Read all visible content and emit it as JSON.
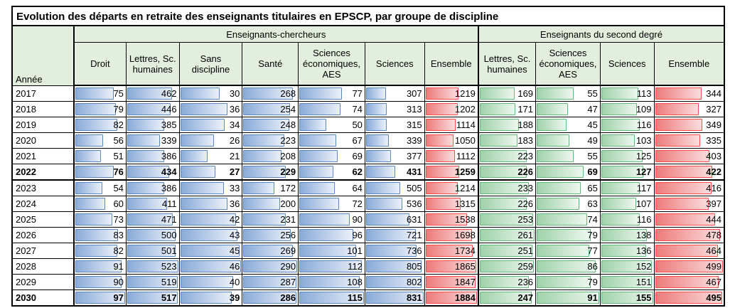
{
  "title": "Evolution des départs en retraite des enseignants titulaires en EPSCP, par groupe de discipline",
  "groups": {
    "ec": "Enseignants-chercheurs",
    "sd": "Enseignants du second degré"
  },
  "year_header": "Année",
  "columns": [
    {
      "id": "droit_ec",
      "label": "Droit",
      "group": "ec",
      "bar": "blue",
      "max": 97
    },
    {
      "id": "lettres_ec",
      "label": "Lettres, Sc. humaines",
      "group": "ec",
      "bar": "blue",
      "max": 523
    },
    {
      "id": "sans_discipline_ec",
      "label": "Sans discipline",
      "group": "ec",
      "bar": "blue",
      "max": 46
    },
    {
      "id": "sante_ec",
      "label": "Santé",
      "group": "ec",
      "bar": "blue",
      "max": 290
    },
    {
      "id": "sci_eco_aes_ec",
      "label": "Sciences économiques, AES",
      "group": "ec",
      "bar": "blue",
      "max": 115
    },
    {
      "id": "sciences_ec",
      "label": "Sciences",
      "group": "ec",
      "bar": "blue",
      "max": 831
    },
    {
      "id": "ensemble_ec",
      "label": "Ensemble",
      "group": "ec",
      "bar": "red",
      "max": 1884
    },
    {
      "id": "lettres_sd",
      "label": "Lettres, Sc. humaines",
      "group": "sd",
      "bar": "green",
      "max": 261
    },
    {
      "id": "sci_eco_aes_sd",
      "label": "Sciences économiques, AES",
      "group": "sd",
      "bar": "green",
      "max": 91
    },
    {
      "id": "sciences_sd",
      "label": "Sciences",
      "group": "sd",
      "bar": "green",
      "max": 155
    },
    {
      "id": "ensemble_sd",
      "label": "Ensemble",
      "group": "sd",
      "bar": "red",
      "max": 499
    }
  ],
  "rows": [
    {
      "year": "2017",
      "bold": false,
      "sep": false,
      "values": [
        75,
        462,
        30,
        268,
        77,
        307,
        1219,
        169,
        55,
        113,
        344
      ]
    },
    {
      "year": "2018",
      "bold": false,
      "sep": false,
      "values": [
        79,
        446,
        36,
        254,
        74,
        313,
        1202,
        171,
        47,
        109,
        327
      ]
    },
    {
      "year": "2019",
      "bold": false,
      "sep": false,
      "values": [
        82,
        385,
        34,
        248,
        50,
        315,
        1114,
        188,
        45,
        116,
        349
      ]
    },
    {
      "year": "2020",
      "bold": false,
      "sep": false,
      "values": [
        56,
        339,
        26,
        223,
        67,
        339,
        1050,
        183,
        49,
        103,
        335
      ]
    },
    {
      "year": "2021",
      "bold": false,
      "sep": false,
      "values": [
        51,
        386,
        21,
        208,
        69,
        377,
        1112,
        223,
        55,
        125,
        403
      ]
    },
    {
      "year": "2022",
      "bold": true,
      "sep": false,
      "values": [
        76,
        434,
        27,
        229,
        62,
        431,
        1259,
        226,
        69,
        127,
        422
      ]
    },
    {
      "year": "2023",
      "bold": false,
      "sep": true,
      "values": [
        54,
        386,
        33,
        172,
        64,
        505,
        1214,
        233,
        65,
        117,
        416
      ]
    },
    {
      "year": "2024",
      "bold": false,
      "sep": false,
      "values": [
        60,
        411,
        36,
        200,
        72,
        536,
        1315,
        226,
        63,
        107,
        397
      ]
    },
    {
      "year": "2025",
      "bold": false,
      "sep": false,
      "values": [
        73,
        471,
        42,
        231,
        90,
        631,
        1538,
        253,
        74,
        116,
        444
      ]
    },
    {
      "year": "2026",
      "bold": false,
      "sep": false,
      "values": [
        83,
        500,
        43,
        256,
        96,
        721,
        1698,
        261,
        79,
        138,
        478
      ]
    },
    {
      "year": "2027",
      "bold": false,
      "sep": false,
      "values": [
        82,
        501,
        45,
        269,
        101,
        736,
        1734,
        251,
        77,
        136,
        464
      ]
    },
    {
      "year": "2028",
      "bold": false,
      "sep": false,
      "values": [
        91,
        523,
        46,
        290,
        112,
        805,
        1865,
        259,
        86,
        152,
        499
      ]
    },
    {
      "year": "2029",
      "bold": false,
      "sep": false,
      "values": [
        90,
        519,
        40,
        287,
        108,
        802,
        1847,
        236,
        79,
        151,
        467
      ]
    },
    {
      "year": "2030",
      "bold": true,
      "sep": false,
      "values": [
        97,
        517,
        39,
        286,
        115,
        831,
        1884,
        247,
        91,
        155,
        495
      ]
    }
  ],
  "colors": {
    "header_bg": "#e3efde",
    "bar_blue_border": "#5b87c5",
    "bar_blue_start": "#8aabd8",
    "bar_blue_end": "#eaf0fa",
    "bar_red_border": "#fb4b4b",
    "bar_red_start": "#ee7b7b",
    "bar_red_end": "#fadddd",
    "bar_green_border": "#62ba7a",
    "bar_green_start": "#a0d2aa",
    "bar_green_end": "#edf7ef"
  },
  "chart_data": {
    "type": "table",
    "title": "Evolution des départs en retraite des enseignants titulaires en EPSCP, par groupe de discipline",
    "categories": [
      "2017",
      "2018",
      "2019",
      "2020",
      "2021",
      "2022",
      "2023",
      "2024",
      "2025",
      "2026",
      "2027",
      "2028",
      "2029",
      "2030"
    ],
    "column_groups": [
      "Enseignants-chercheurs",
      "Enseignants du second degré"
    ],
    "series": [
      {
        "name": "Droit (Enseignants-chercheurs)",
        "values": [
          75,
          79,
          82,
          56,
          51,
          76,
          54,
          60,
          73,
          83,
          82,
          91,
          90,
          97
        ]
      },
      {
        "name": "Lettres, Sc. humaines (Enseignants-chercheurs)",
        "values": [
          462,
          446,
          385,
          339,
          386,
          434,
          386,
          411,
          471,
          500,
          501,
          523,
          519,
          517
        ]
      },
      {
        "name": "Sans discipline (Enseignants-chercheurs)",
        "values": [
          30,
          36,
          34,
          26,
          21,
          27,
          33,
          36,
          42,
          43,
          45,
          46,
          40,
          39
        ]
      },
      {
        "name": "Santé (Enseignants-chercheurs)",
        "values": [
          268,
          254,
          248,
          223,
          208,
          229,
          172,
          200,
          231,
          256,
          269,
          290,
          287,
          286
        ]
      },
      {
        "name": "Sciences économiques, AES (Enseignants-chercheurs)",
        "values": [
          77,
          74,
          50,
          67,
          69,
          62,
          64,
          72,
          90,
          96,
          101,
          112,
          108,
          115
        ]
      },
      {
        "name": "Sciences (Enseignants-chercheurs)",
        "values": [
          307,
          313,
          315,
          339,
          377,
          431,
          505,
          536,
          631,
          721,
          736,
          805,
          802,
          831
        ]
      },
      {
        "name": "Ensemble (Enseignants-chercheurs)",
        "values": [
          1219,
          1202,
          1114,
          1050,
          1112,
          1259,
          1214,
          1315,
          1538,
          1698,
          1734,
          1865,
          1847,
          1884
        ]
      },
      {
        "name": "Lettres, Sc. humaines (Second degré)",
        "values": [
          169,
          171,
          188,
          183,
          223,
          226,
          233,
          226,
          253,
          261,
          251,
          259,
          236,
          247
        ]
      },
      {
        "name": "Sciences économiques, AES (Second degré)",
        "values": [
          55,
          47,
          45,
          49,
          55,
          69,
          65,
          63,
          74,
          79,
          77,
          86,
          79,
          91
        ]
      },
      {
        "name": "Sciences (Second degré)",
        "values": [
          113,
          109,
          116,
          103,
          125,
          127,
          117,
          107,
          116,
          138,
          136,
          152,
          151,
          155
        ]
      },
      {
        "name": "Ensemble (Second degré)",
        "values": [
          344,
          327,
          349,
          335,
          403,
          422,
          416,
          397,
          444,
          478,
          464,
          499,
          467,
          495
        ]
      }
    ],
    "notes": "Data bars rendered in each cell, length proportional to value / column max; blue = enseignants-chercheurs disciplines, green = second degré disciplines, red = Ensemble totals; rows 2022 and 2030 bold; thick rule between 2022 and 2023."
  }
}
